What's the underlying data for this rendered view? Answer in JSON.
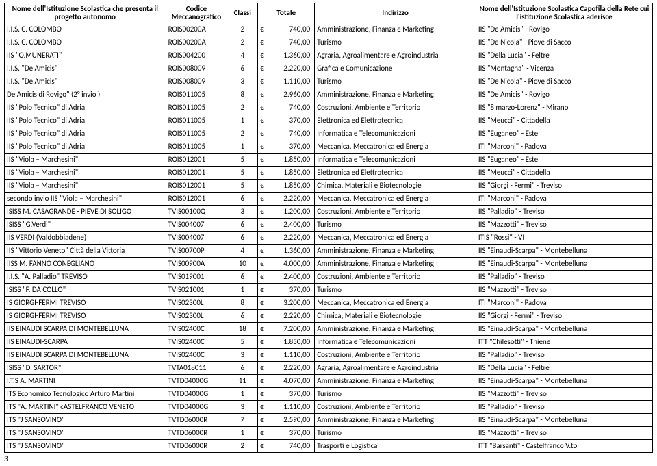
{
  "headers": {
    "nome": "Nome dell'Istituzione Scolastica che presenta il progetto autonomo",
    "codice": "Codice Meccanografico",
    "classi": "Classi",
    "totale": "Totale",
    "indirizzo": "Indirizzo",
    "capofila": "Nome dell'Istituzione Scolastica Capofila della Rete cui l'istituzione Scolastica aderisce"
  },
  "currency": "€",
  "pageNumber": "3",
  "rows": [
    {
      "nome": "I.I.S. C. COLOMBO",
      "codice": "ROIS00200A",
      "classi": "2",
      "totale": "740,00",
      "indirizzo": "Amministrazione, Finanza e Marketing",
      "capofila": "IIS \"De Amicis\" - Rovigo"
    },
    {
      "nome": "I.I.S. C. COLOMBO",
      "codice": "ROIS00200A",
      "classi": "2",
      "totale": "740,00",
      "indirizzo": "Turismo",
      "capofila": "IIS \"De Nicola\" - Piove di Sacco"
    },
    {
      "nome": "IIS \"O.MUNERATI\"",
      "codice": "ROIS004200",
      "classi": "4",
      "totale": "1.360,00",
      "indirizzo": "Agraria, Agroalimentare e Agroindustria",
      "capofila": "IIS \"Della Lucia\" - Feltre"
    },
    {
      "nome": "I.I.S. \"De Amicis\"",
      "codice": "ROIS008009",
      "classi": "6",
      "totale": "2.220,00",
      "indirizzo": "Grafica e Comunicazione",
      "capofila": "IIS \"Montagna\" - Vicenza"
    },
    {
      "nome": "I.I.S. \"De Amicis\"",
      "codice": "ROIS008009",
      "classi": "3",
      "totale": "1.110,00",
      "indirizzo": "Turismo",
      "capofila": "IIS \"De Nicola\" - Piove di Sacco"
    },
    {
      "nome": "De Amicis di Rovigo\" (2° invio )",
      "codice": "ROIS011005",
      "classi": "8",
      "totale": "2.960,00",
      "indirizzo": "Amministrazione, Finanza e Marketing",
      "capofila": "IIS \"De Amicis\" - Rovigo"
    },
    {
      "nome": "IIS \"Polo Tecnico\" di Adria",
      "codice": "ROIS011005",
      "classi": "2",
      "totale": "740,00",
      "indirizzo": "Costruzioni, Ambiente e Territorio",
      "capofila": "IIS \"8 marzo-Lorenz\" - Mirano"
    },
    {
      "nome": "IIS \"Polo Tecnico\" di Adria",
      "codice": "ROIS011005",
      "classi": "1",
      "totale": "370,00",
      "indirizzo": "Elettronica ed Elettrotecnica",
      "capofila": "IIS \"Meucci\" - Cittadella"
    },
    {
      "nome": "IIS \"Polo Tecnico\" di Adria",
      "codice": "ROIS011005",
      "classi": "2",
      "totale": "740,00",
      "indirizzo": "Informatica e Telecomunicazioni",
      "capofila": "IIS \"Euganeo\" - Este"
    },
    {
      "nome": "IIS \"Polo Tecnico\" di Adria",
      "codice": "ROIS011005",
      "classi": "1",
      "totale": "370,00",
      "indirizzo": "Meccanica, Meccatronica ed Energia",
      "capofila": "ITI \"Marconi\" - Padova"
    },
    {
      "nome": "IIS \"Viola – Marchesini\"",
      "codice": "ROIS012001",
      "classi": "5",
      "totale": "1.850,00",
      "indirizzo": "Informatica e Telecomunicazioni",
      "capofila": "IIS \"Euganeo\" - Este"
    },
    {
      "nome": "IIS \"Viola – Marchesini\"",
      "codice": "ROIS012001",
      "classi": "5",
      "totale": "1.850,00",
      "indirizzo": "Elettronica ed Elettrotecnica",
      "capofila": "IIS \"Meucci\" - Cittadella"
    },
    {
      "nome": "IIS \"Viola – Marchesini\"",
      "codice": "ROIS012001",
      "classi": "5",
      "totale": "1.850,00",
      "indirizzo": "Chimica, Materiali e Biotecnologie",
      "capofila": "IIS \"Giorgi - Fermi\" - Treviso"
    },
    {
      "nome": "secondo invio   IIS  \"Viola – Marchesini\"",
      "codice": "ROIS012001",
      "classi": "6",
      "totale": "2.220,00",
      "indirizzo": "Meccanica, Meccatronica ed Energia",
      "capofila": "ITI \"Marconi\" - Padova"
    },
    {
      "nome": "ISISS M. CASAGRANDE - PIEVE DI SOLIGO",
      "codice": "TVIS00100Q",
      "classi": "3",
      "totale": "1.200,00",
      "indirizzo": "Costruzioni, Ambiente e Territorio",
      "capofila": "IIS \"Palladio\" - Treviso"
    },
    {
      "nome": "ISISS \"G.Verdi\"",
      "codice": "TVIS004007",
      "classi": "6",
      "totale": "2.400,00",
      "indirizzo": "Turismo",
      "capofila": "IIS \"Mazzotti\" - Treviso"
    },
    {
      "nome": "IIS VERDI (Valdobbiadene)",
      "codice": "TVIS004007",
      "classi": "6",
      "totale": "2.220,00",
      "indirizzo": "Meccanica, Meccatronica ed Energia",
      "capofila": "ITIS \"Rossi\" - VI"
    },
    {
      "nome": "IIS \"Vittorio Veneto\" Città della Vittoria",
      "codice": "TVIS00700P",
      "classi": "4",
      "totale": "1.360,00",
      "indirizzo": "Amministrazione, Finanza e Marketing",
      "capofila": "IIS \"Einaudi-Scarpa\" - Montebelluna"
    },
    {
      "nome": "IISS M. FANNO CONEGLIANO",
      "codice": "TVIS00900A",
      "classi": "10",
      "totale": "4.000,00",
      "indirizzo": "Amministrazione, Finanza e Marketing",
      "capofila": "IIS \"Einaudi-Scarpa\" - Montebelluna"
    },
    {
      "nome": "I.I.S. \"A. Palladio\" TREVISO",
      "codice": "TVIS019001",
      "classi": "6",
      "totale": "2.400,00",
      "indirizzo": "Costruzioni, Ambiente e Territorio",
      "capofila": "IIS \"Palladio\" - Treviso"
    },
    {
      "nome": "ISISS \"F. DA COLLO\"",
      "codice": "TVIS021001",
      "classi": "1",
      "totale": "370,00",
      "indirizzo": "Turismo",
      "capofila": "IIS \"Mazzotti\" - Treviso"
    },
    {
      "nome": "IS GIORGI-FERMI TREVISO",
      "codice": "TVIS02300L",
      "classi": "8",
      "totale": "3.200,00",
      "indirizzo": "Meccanica, Meccatronica ed Energia",
      "capofila": "ITI \"Marconi\" - Padova"
    },
    {
      "nome": "IS GIORGI-FERMI TREVISO",
      "codice": "TVIS02300L",
      "classi": "6",
      "totale": "2.220,00",
      "indirizzo": "Chimica, Materiali e Biotecnologie",
      "capofila": "IIS \"Giorgi - Fermi\" - Treviso"
    },
    {
      "nome": "IIS EINAUDI SCARPA DI MONTEBELLUNA",
      "codice": "TVIS02400C",
      "classi": "18",
      "totale": "7.200,00",
      "indirizzo": "Amministrazione, Finanza e Marketing",
      "capofila": "IIS \"Einaudi-Scarpa\" - Montebelluna"
    },
    {
      "nome": "IIS EINAUDI-SCARPA",
      "codice": "TVIS02400C",
      "classi": "5",
      "totale": "1.850,00",
      "indirizzo": "Informatica e Telecomunicazioni",
      "capofila": "ITT \"Chilesotti\" - Thiene"
    },
    {
      "nome": "IIS EINAUDI SCARPA DI MONTEBELLUNA",
      "codice": "TVIS02400C",
      "classi": "3",
      "totale": "1.110,00",
      "indirizzo": "Costruzioni, Ambiente e Territorio",
      "capofila": "IIS \"Palladio\" - Treviso"
    },
    {
      "nome": "ISISS \"D. SARTOR\"",
      "codice": "TVTA018011",
      "classi": "6",
      "totale": "2.220,00",
      "indirizzo": "Agraria, Agroalimentare e Agroindustria",
      "capofila": "IIS \"Della Lucia\" - Feltre"
    },
    {
      "nome": "I.T.S A. MARTINI",
      "codice": "TVTD04000G",
      "classi": "11",
      "totale": "4.070,00",
      "indirizzo": "Amministrazione, Finanza e Marketing",
      "capofila": "IIS \"Einaudi-Scarpa\" - Montebelluna"
    },
    {
      "nome": "ITS Economico Tecnologico Arturo Martini",
      "codice": "TVTD04000G",
      "classi": "1",
      "totale": "370,00",
      "indirizzo": "Turismo",
      "capofila": "IIS \"Mazzotti\" - Treviso"
    },
    {
      "nome": "ITS \"A. MARTINI\" cASTELFRANCO VENETO",
      "codice": "TVTD04000G",
      "classi": "3",
      "totale": "1.110,00",
      "indirizzo": "Costruzioni, Ambiente e Territorio",
      "capofila": "IIS \"Palladio\" - Treviso"
    },
    {
      "nome": "ITS \"J SANSOVINO\"",
      "codice": "TVTD06000R",
      "classi": "7",
      "totale": "2.590,00",
      "indirizzo": "Amministrazione, Finanza e Marketing",
      "capofila": "IIS \"Einaudi-Scarpa\" - Montebelluna"
    },
    {
      "nome": "ITS \"J SANSOVINO\"",
      "codice": "TVTD06000R",
      "classi": "1",
      "totale": "370,00",
      "indirizzo": "Turismo",
      "capofila": "IIS \"Mazzotti\" - Treviso"
    },
    {
      "nome": "ITS \"J SANSOVINO\"",
      "codice": "TVTD06000R",
      "classi": "2",
      "totale": "740,00",
      "indirizzo": "Trasporti e Logistica",
      "capofila": "ITT \"Barsanti\" - Castelfranco V.to"
    }
  ]
}
